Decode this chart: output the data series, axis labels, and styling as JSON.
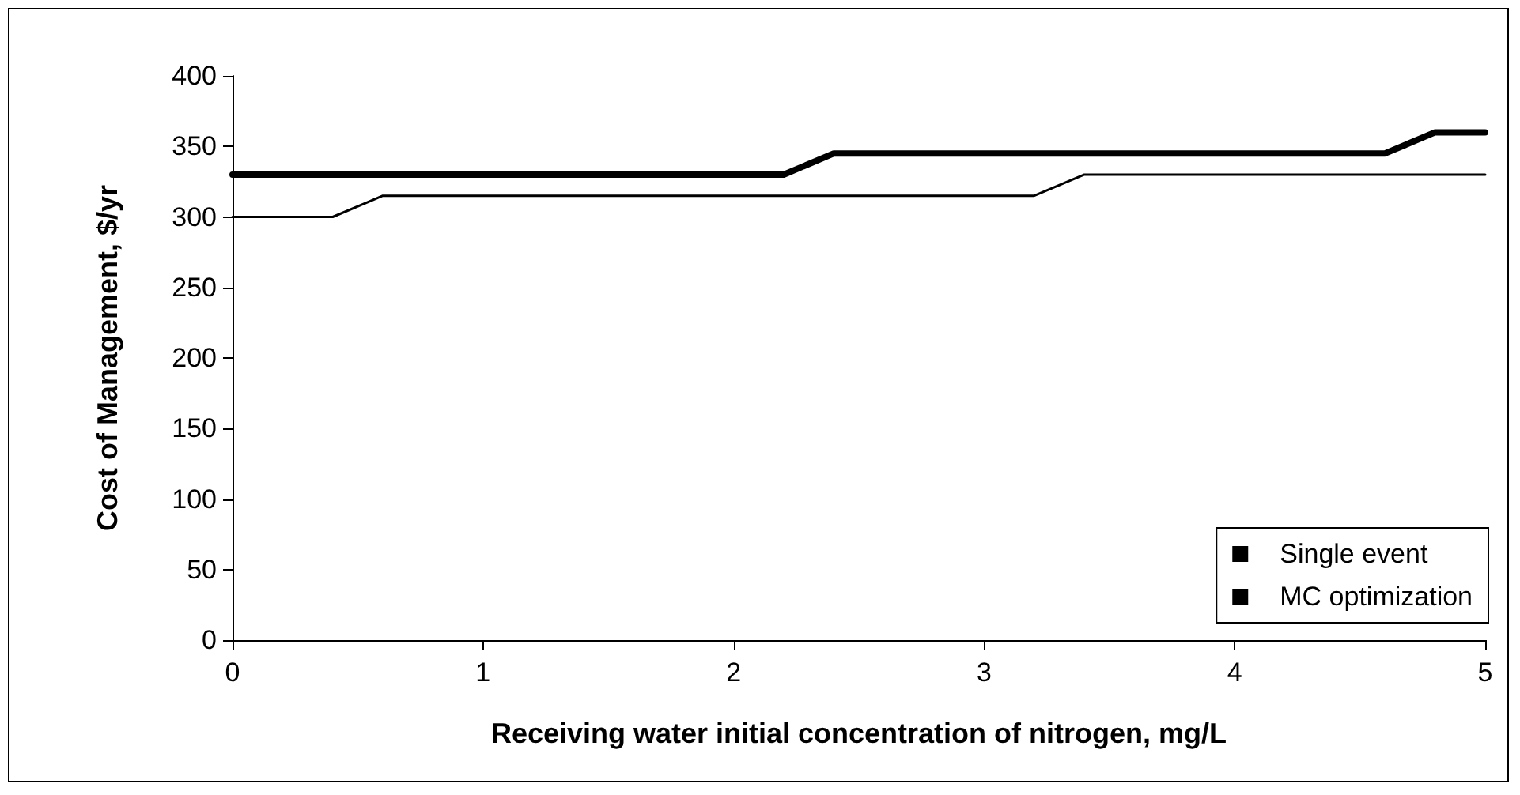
{
  "chart_data": {
    "type": "line",
    "xlabel": "Receiving water initial concentration of nitrogen, mg/L",
    "ylabel": "Cost of Management, $/yr",
    "xlim": [
      0,
      5
    ],
    "xticks": [
      0,
      1,
      2,
      3,
      4,
      5
    ],
    "ylim": [
      0,
      400
    ],
    "yticks": [
      0,
      50,
      100,
      150,
      200,
      250,
      300,
      350,
      400
    ],
    "grid": false,
    "legend": "bottom right",
    "marker": "none",
    "line_style": "solid",
    "series": [
      {
        "name": "Single event",
        "color": "#000000",
        "x": [
          0,
          2.2,
          2.4,
          4.6,
          4.8,
          5
        ],
        "values": [
          330,
          330,
          345,
          345,
          360,
          360
        ]
      },
      {
        "name": "MC optimization",
        "color": "#000000",
        "x": [
          0,
          0.4,
          0.6,
          3.2,
          3.4,
          5
        ],
        "values": [
          300,
          300,
          315,
          315,
          330,
          330
        ]
      }
    ]
  }
}
